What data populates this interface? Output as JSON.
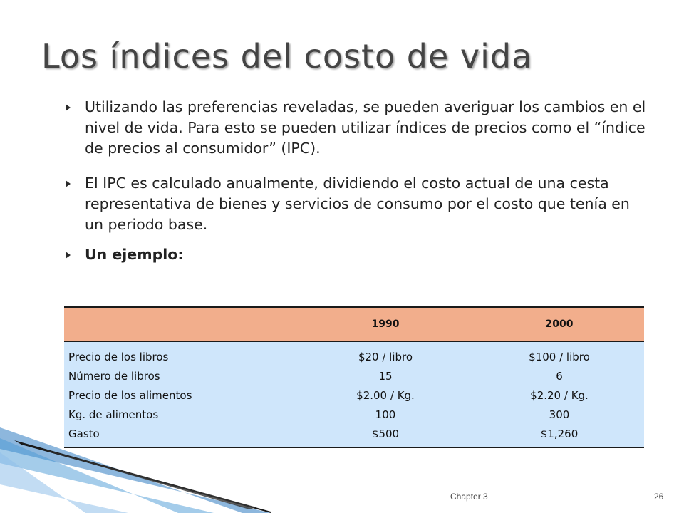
{
  "slide": {
    "title": "Los índices del costo de vida",
    "bullets": [
      {
        "text": "Utilizando las preferencias reveladas, se pueden averiguar los cambios en el nivel de vida. Para esto se pueden utilizar índices de precios como el “índice de precios al consumidor” (IPC).",
        "bullet_icon": "triangle-bullet-icon"
      },
      {
        "text": "El IPC es calculado anualmente, dividiendo el costo actual de una cesta representativa de bienes y servicios de consumo por el costo que tenía en un periodo base.",
        "bullet_icon": "triangle-bullet-icon"
      },
      {
        "text": "Un ejemplo:",
        "bullet_icon": "triangle-bullet-icon"
      }
    ]
  },
  "table": {
    "headers": [
      "",
      "1990",
      "2000"
    ],
    "rows": [
      [
        "Precio de los libros",
        "$20 / libro",
        "$100 / libro"
      ],
      [
        "Número de libros",
        "15",
        "6"
      ],
      [
        "Precio de los alimentos",
        "$2.00 / Kg.",
        "$2.20 / Kg."
      ],
      [
        "Kg. de alimentos",
        "100",
        "300"
      ],
      [
        "Gasto",
        "$500",
        "$1,260"
      ]
    ],
    "colors": {
      "header_bg": "#f2ae8c",
      "body_bg": "#cfe6fb"
    }
  },
  "footer": {
    "chapter": "Chapter 3",
    "page_number": "26"
  },
  "theme": {
    "title_color": "#444444",
    "deco_dark": "#1a1a1a",
    "deco_blue": "#2f7cc1"
  }
}
